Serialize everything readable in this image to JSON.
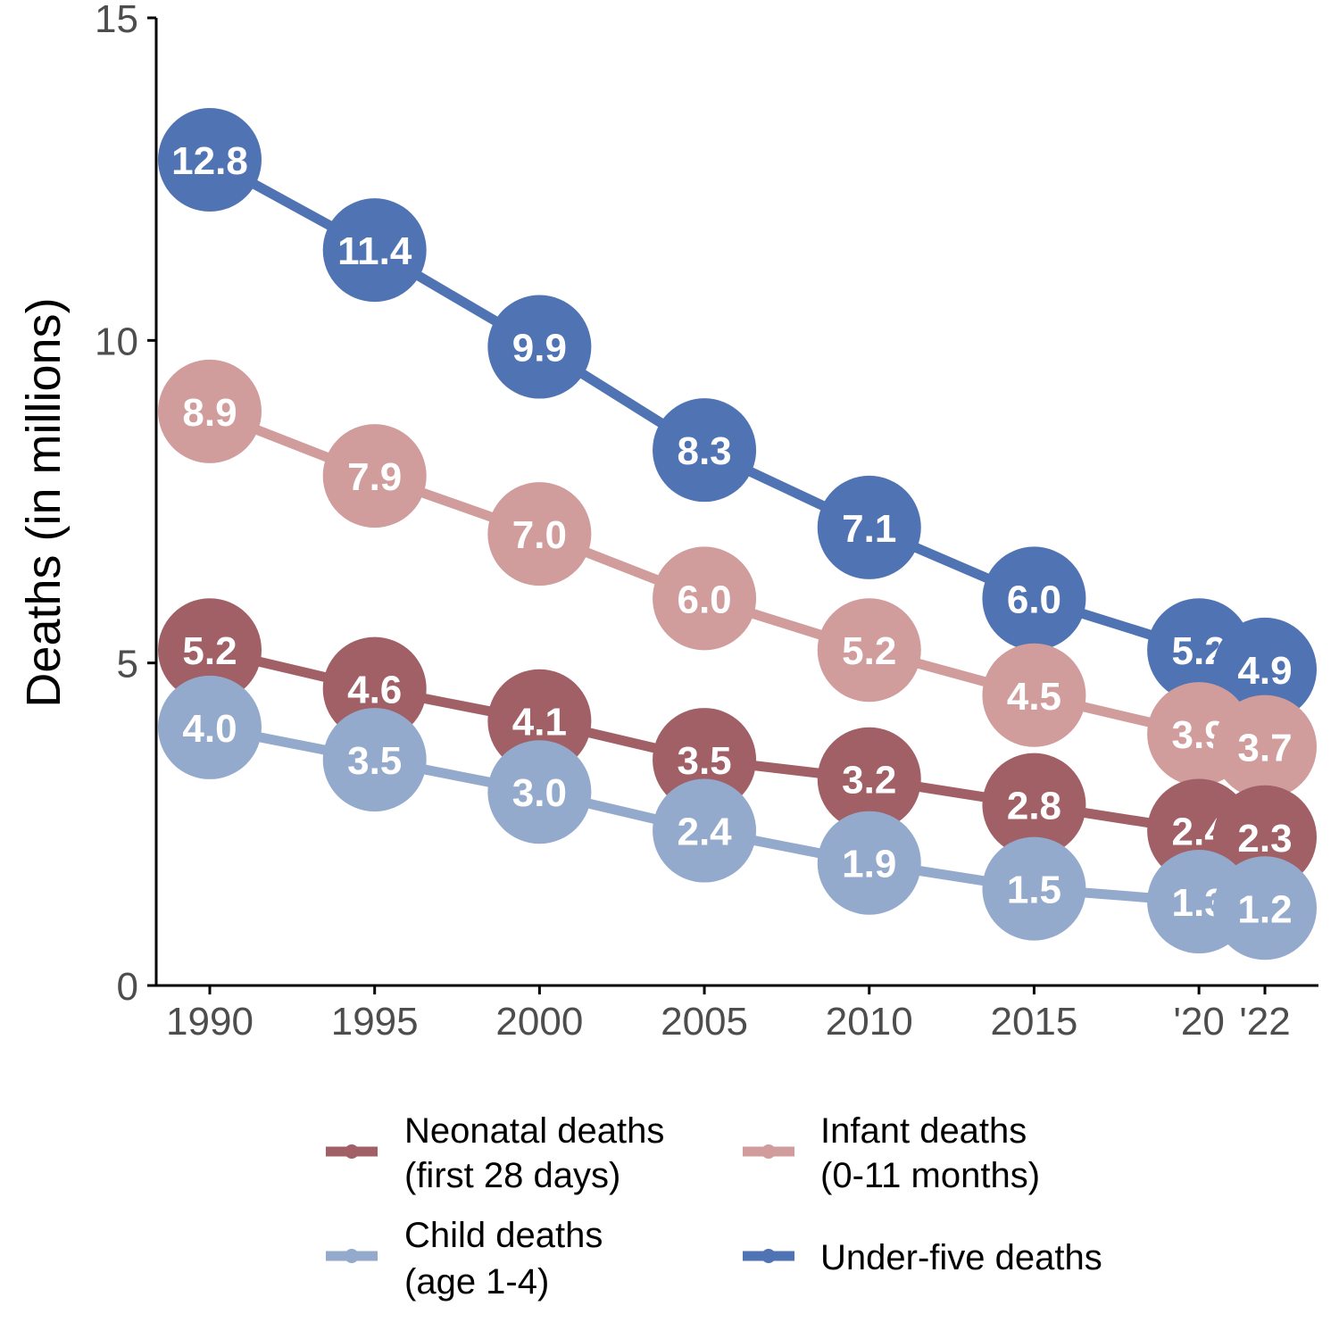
{
  "chart_data": {
    "type": "line",
    "x": [
      1990,
      1995,
      2000,
      2005,
      2010,
      2015,
      2020,
      2022
    ],
    "x_tick_labels": [
      "1990",
      "1995",
      "2000",
      "2005",
      "2010",
      "2015",
      "'20",
      "'22"
    ],
    "ylabel": "Deaths (in millions)",
    "ylim": [
      0,
      15
    ],
    "y_ticks": [
      0,
      5,
      10,
      15
    ],
    "y_tick_labels": [
      "0",
      "5",
      "10",
      "15"
    ],
    "grid": false,
    "legend_position": "bottom",
    "series": [
      {
        "name_lines": [
          "Under-five deaths"
        ],
        "color": "#5073b3",
        "values": [
          12.8,
          11.4,
          9.9,
          8.3,
          7.1,
          6.0,
          5.2,
          4.9
        ],
        "labels": [
          "12.8",
          "11.4",
          "9.9",
          "8.3",
          "7.1",
          "6.0",
          "5.2",
          "4.9"
        ]
      },
      {
        "name_lines": [
          "Infant deaths",
          "(0-11 months)"
        ],
        "color": "#d09c9c",
        "values": [
          8.9,
          7.9,
          7.0,
          6.0,
          5.2,
          4.5,
          3.9,
          3.7
        ],
        "labels": [
          "8.9",
          "7.9",
          "7.0",
          "6.0",
          "5.2",
          "4.5",
          "3.9",
          "3.7"
        ]
      },
      {
        "name_lines": [
          "Neonatal deaths",
          "(first 28 days)"
        ],
        "color": "#a06065",
        "values": [
          5.2,
          4.6,
          4.1,
          3.5,
          3.2,
          2.8,
          2.4,
          2.3
        ],
        "labels": [
          "5.2",
          "4.6",
          "4.1",
          "3.5",
          "3.2",
          "2.8",
          "2.4",
          "2.3"
        ]
      },
      {
        "name_lines": [
          "Child deaths",
          "(age 1-4)"
        ],
        "color": "#94aacd",
        "values": [
          4.0,
          3.5,
          3.0,
          2.4,
          1.9,
          1.5,
          1.3,
          1.2
        ],
        "labels": [
          "4.0",
          "3.5",
          "3.0",
          "2.4",
          "1.9",
          "1.5",
          "1.3",
          "1.2"
        ]
      }
    ]
  }
}
